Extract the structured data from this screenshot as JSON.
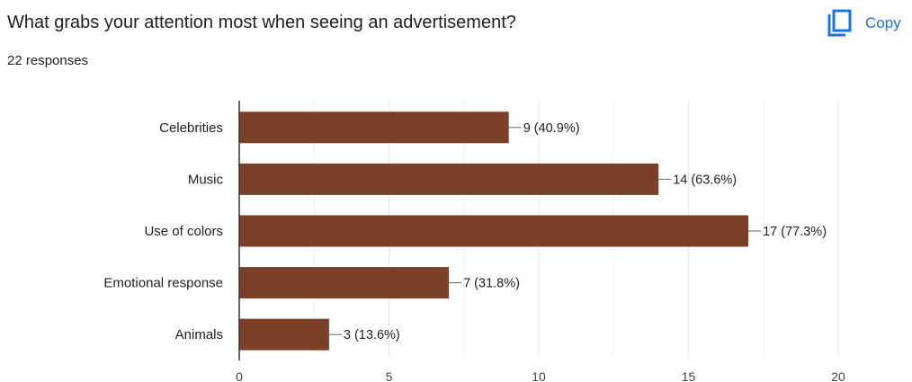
{
  "question": {
    "title": "What grabs your attention most when seeing an advertisement?",
    "responses": "22 responses"
  },
  "toolbar": {
    "copy_label": "Copy",
    "copy_icon": "copy-icon"
  },
  "colors": {
    "bar": "#7a4128",
    "accent": "#1a73e8",
    "grid": "#e8e8e8",
    "axis": "#333333"
  },
  "chart_data": {
    "type": "bar",
    "orientation": "horizontal",
    "categories": [
      "Celebrities",
      "Music",
      "Use of colors",
      "Emotional response",
      "Animals"
    ],
    "values": [
      9,
      14,
      17,
      7,
      3
    ],
    "data_labels": [
      "9 (40.9%)",
      "14 (63.6%)",
      "17 (77.3%)",
      "7 (31.8%)",
      "3 (13.6%)"
    ],
    "xlim": [
      0,
      20
    ],
    "xticks": [
      0,
      5,
      10,
      15,
      20
    ],
    "grid": true,
    "legend": "none"
  }
}
